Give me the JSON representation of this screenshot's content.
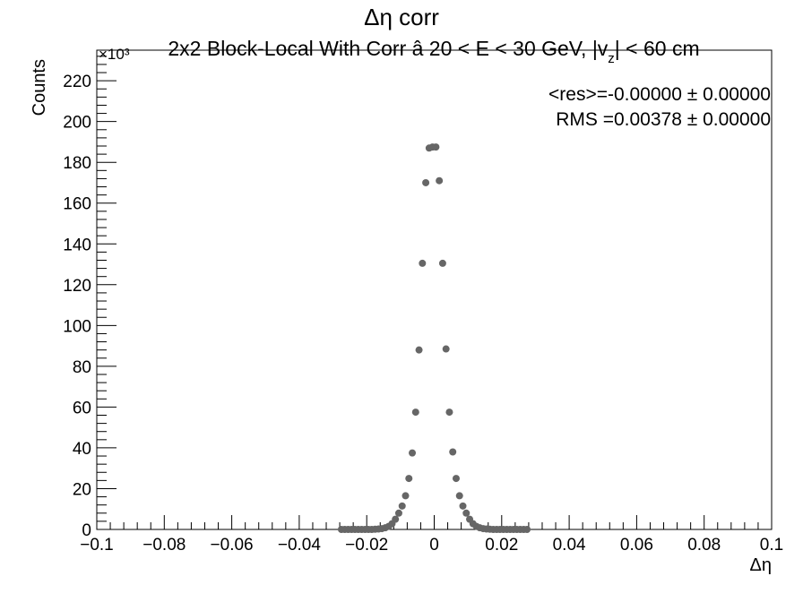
{
  "chart_data": {
    "type": "scatter",
    "title": "Δη corr",
    "subtitle": {
      "prefix": "2x2 Block-Local With Corr   â   20 < E < 30 GeV, |v",
      "sub": "z",
      "suffix": "| < 60 cm"
    },
    "xlabel": "Δη",
    "ylabel": "Counts",
    "y_multiplier": "×10³",
    "xlim": [
      -0.1,
      0.1
    ],
    "ylim": [
      0,
      235
    ],
    "x_ticks": [
      -0.1,
      -0.08,
      -0.06,
      -0.04,
      -0.02,
      0,
      0.02,
      0.04,
      0.06,
      0.08,
      0.1
    ],
    "x_tick_labels": [
      "−0.1",
      "−0.08",
      "−0.06",
      "−0.04",
      "−0.02",
      "0",
      "0.02",
      "0.04",
      "0.06",
      "0.08",
      "0.1"
    ],
    "y_ticks": [
      0,
      20,
      40,
      60,
      80,
      100,
      120,
      140,
      160,
      180,
      200,
      220
    ],
    "y_tick_labels": [
      "0",
      "20",
      "40",
      "60",
      "80",
      "100",
      "120",
      "140",
      "160",
      "180",
      "200",
      "220"
    ],
    "grid": false,
    "marker_color": "#666666",
    "stats": {
      "mean_line": "<res>=-0.00000 ± 0.00000",
      "rms_line": "RMS =0.00378 ± 0.00000"
    },
    "series": [
      {
        "x": [
          -0.0275,
          -0.0265,
          -0.0255,
          -0.0245,
          -0.0235,
          -0.0225,
          -0.0215,
          -0.0205,
          -0.0195,
          -0.0185,
          -0.0175,
          -0.0165,
          -0.0155,
          -0.0145,
          -0.0135,
          -0.0125,
          -0.0115,
          -0.0105,
          -0.0095,
          -0.0085,
          -0.0075,
          -0.0065,
          -0.0055,
          -0.0045,
          -0.0035,
          -0.0025,
          -0.0015,
          -0.0005,
          0.0005,
          0.0015,
          0.0025,
          0.0035,
          0.0045,
          0.0055,
          0.0065,
          0.0075,
          0.0085,
          0.0095,
          0.0105,
          0.0115,
          0.0125,
          0.0135,
          0.0145,
          0.0155,
          0.0165,
          0.0175,
          0.0185,
          0.0195,
          0.0205,
          0.0215,
          0.0225,
          0.0235,
          0.0245,
          0.0255,
          0.0265,
          0.0275
        ],
        "y": [
          0,
          0,
          0,
          0,
          0,
          0,
          0,
          0,
          0,
          0,
          0.1,
          0.2,
          0.4,
          0.8,
          1.5,
          2.8,
          5,
          8,
          11.5,
          16.5,
          25,
          37.5,
          57.5,
          88,
          130.5,
          170,
          187,
          187.5,
          187.5,
          171,
          130.5,
          88.5,
          57.5,
          38,
          25,
          16.5,
          11.5,
          8,
          5,
          2.8,
          1.5,
          0.8,
          0.4,
          0.2,
          0.1,
          0,
          0,
          0,
          0,
          0,
          0,
          0,
          0,
          0,
          0,
          0
        ]
      }
    ]
  }
}
